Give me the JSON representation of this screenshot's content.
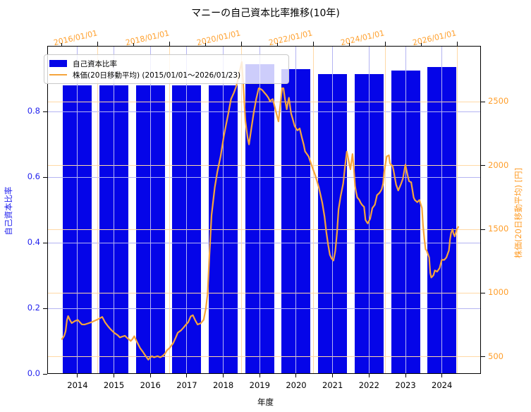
{
  "title": "マニーの自己資本比率推移(10年)",
  "legend": {
    "bar_label": "自己資本比率",
    "line_label": "株価(20日移動平均) (2015/01/01～2026/01/23)"
  },
  "axes": {
    "x_bottom": {
      "label": "年度",
      "ticks": [
        2014,
        2015,
        2016,
        2017,
        2018,
        2019,
        2020,
        2021,
        2022,
        2023,
        2024
      ]
    },
    "x_top": {
      "tick_labels": [
        "2016/01/01",
        "2018/01/01",
        "2020/01/01",
        "2022/01/01",
        "2024/01/01",
        "2026/01/01"
      ],
      "tick_years": [
        2016,
        2018,
        2020,
        2022,
        2024,
        2026
      ],
      "minor_tick_years": [
        2015,
        2017,
        2019,
        2021,
        2023,
        2025
      ]
    },
    "y_left": {
      "label": "自己資本比率",
      "ticks": [
        0.0,
        0.2,
        0.4,
        0.6,
        0.8
      ]
    },
    "y_right": {
      "label": "株価(20日移動平均) [円]",
      "ticks": [
        500,
        1000,
        1500,
        2000,
        2500
      ]
    }
  },
  "colors": {
    "bar": "#0505e8",
    "line": "#f5a53c",
    "left_text": "#2222ee",
    "right_text": "#ff9e2a",
    "grid_blue": "#b4b4f2",
    "grid_orange": "#ffd9a6"
  },
  "chart_data": {
    "type": "bar+line",
    "title": "マニーの自己資本比率推移(10年)",
    "bar": {
      "type": "bar",
      "name": "自己資本比率",
      "categories": [
        2014,
        2015,
        2016,
        2017,
        2018,
        2019,
        2020,
        2021,
        2022,
        2023,
        2024
      ],
      "values": [
        0.88,
        0.88,
        0.88,
        0.88,
        0.88,
        0.945,
        0.93,
        0.915,
        0.915,
        0.925,
        0.935
      ],
      "xlim": [
        2013.17,
        2025.07
      ],
      "ylim": [
        0,
        1.0
      ]
    },
    "line": {
      "type": "line",
      "name": "株価(20日移動平均)",
      "date_range": "2015/01/01～2026/01/23",
      "unit": "円",
      "xlim": [
        2014.59,
        2026.65
      ],
      "ylim": [
        367,
        2937
      ],
      "points": [
        [
          2015.0,
          640
        ],
        [
          2015.06,
          665
        ],
        [
          2015.1,
          700
        ],
        [
          2015.14,
          790
        ],
        [
          2015.17,
          820
        ],
        [
          2015.22,
          790
        ],
        [
          2015.27,
          765
        ],
        [
          2015.35,
          780
        ],
        [
          2015.44,
          790
        ],
        [
          2015.55,
          755
        ],
        [
          2015.63,
          754
        ],
        [
          2015.72,
          762
        ],
        [
          2015.82,
          772
        ],
        [
          2015.9,
          782
        ],
        [
          2016.0,
          795
        ],
        [
          2016.08,
          808
        ],
        [
          2016.12,
          813
        ],
        [
          2016.2,
          770
        ],
        [
          2016.28,
          740
        ],
        [
          2016.35,
          717
        ],
        [
          2016.45,
          690
        ],
        [
          2016.55,
          670
        ],
        [
          2016.61,
          653
        ],
        [
          2016.68,
          660
        ],
        [
          2016.75,
          666
        ],
        [
          2016.83,
          645
        ],
        [
          2016.91,
          625
        ],
        [
          2016.96,
          640
        ],
        [
          2017.01,
          662
        ],
        [
          2017.08,
          620
        ],
        [
          2017.17,
          570
        ],
        [
          2017.25,
          540
        ],
        [
          2017.33,
          506
        ],
        [
          2017.4,
          478
        ],
        [
          2017.45,
          495
        ],
        [
          2017.5,
          506
        ],
        [
          2017.56,
          497
        ],
        [
          2017.61,
          502
        ],
        [
          2017.66,
          506
        ],
        [
          2017.73,
          497
        ],
        [
          2017.79,
          506
        ],
        [
          2017.86,
          524
        ],
        [
          2017.92,
          552
        ],
        [
          2017.99,
          570
        ],
        [
          2018.09,
          607
        ],
        [
          2018.16,
          650
        ],
        [
          2018.22,
          690
        ],
        [
          2018.31,
          708
        ],
        [
          2018.38,
          730
        ],
        [
          2018.45,
          754
        ],
        [
          2018.51,
          772
        ],
        [
          2018.58,
          818
        ],
        [
          2018.64,
          827
        ],
        [
          2018.7,
          790
        ],
        [
          2018.77,
          754
        ],
        [
          2018.86,
          764
        ],
        [
          2018.94,
          791
        ],
        [
          2019.0,
          880
        ],
        [
          2019.05,
          995
        ],
        [
          2019.1,
          1300
        ],
        [
          2019.16,
          1611
        ],
        [
          2019.25,
          1830
        ],
        [
          2019.32,
          1950
        ],
        [
          2019.41,
          2070
        ],
        [
          2019.5,
          2230
        ],
        [
          2019.55,
          2300
        ],
        [
          2019.62,
          2400
        ],
        [
          2019.7,
          2520
        ],
        [
          2019.78,
          2570
        ],
        [
          2019.84,
          2615
        ],
        [
          2019.9,
          2680
        ],
        [
          2019.95,
          2750
        ],
        [
          2020.0,
          2810
        ],
        [
          2020.05,
          2600
        ],
        [
          2020.1,
          2350
        ],
        [
          2020.16,
          2220
        ],
        [
          2020.2,
          2165
        ],
        [
          2020.27,
          2300
        ],
        [
          2020.33,
          2410
        ],
        [
          2020.4,
          2520
        ],
        [
          2020.47,
          2605
        ],
        [
          2020.52,
          2600
        ],
        [
          2020.57,
          2590
        ],
        [
          2020.63,
          2570
        ],
        [
          2020.69,
          2550
        ],
        [
          2020.74,
          2530
        ],
        [
          2020.78,
          2505
        ],
        [
          2020.82,
          2512
        ],
        [
          2020.86,
          2520
        ],
        [
          2020.92,
          2455
        ],
        [
          2020.97,
          2400
        ],
        [
          2021.02,
          2345
        ],
        [
          2021.07,
          2470
        ],
        [
          2021.12,
          2605
        ],
        [
          2021.16,
          2605
        ],
        [
          2021.2,
          2520
        ],
        [
          2021.25,
          2440
        ],
        [
          2021.28,
          2490
        ],
        [
          2021.31,
          2530
        ],
        [
          2021.34,
          2470
        ],
        [
          2021.37,
          2410
        ],
        [
          2021.42,
          2360
        ],
        [
          2021.47,
          2310
        ],
        [
          2021.51,
          2290
        ],
        [
          2021.55,
          2275
        ],
        [
          2021.58,
          2283
        ],
        [
          2021.61,
          2290
        ],
        [
          2021.64,
          2255
        ],
        [
          2021.67,
          2220
        ],
        [
          2021.72,
          2165
        ],
        [
          2021.76,
          2110
        ],
        [
          2021.81,
          2090
        ],
        [
          2021.86,
          2070
        ],
        [
          2021.9,
          2035
        ],
        [
          2021.97,
          1980
        ],
        [
          2022.04,
          1925
        ],
        [
          2022.09,
          1878
        ],
        [
          2022.14,
          1830
        ],
        [
          2022.19,
          1768
        ],
        [
          2022.24,
          1705
        ],
        [
          2022.3,
          1600
        ],
        [
          2022.35,
          1480
        ],
        [
          2022.4,
          1380
        ],
        [
          2022.45,
          1300
        ],
        [
          2022.5,
          1270
        ],
        [
          2022.55,
          1255
        ],
        [
          2022.6,
          1330
        ],
        [
          2022.65,
          1480
        ],
        [
          2022.69,
          1656
        ],
        [
          2022.75,
          1760
        ],
        [
          2022.82,
          1859
        ],
        [
          2022.87,
          1990
        ],
        [
          2022.92,
          2108
        ],
        [
          2022.97,
          2040
        ],
        [
          2023.02,
          1970
        ],
        [
          2023.05,
          2030
        ],
        [
          2023.08,
          2090
        ],
        [
          2023.12,
          1960
        ],
        [
          2023.15,
          1841
        ],
        [
          2023.18,
          1790
        ],
        [
          2023.21,
          1749
        ],
        [
          2023.24,
          1740
        ],
        [
          2023.27,
          1730
        ],
        [
          2023.3,
          1710
        ],
        [
          2023.34,
          1693
        ],
        [
          2023.4,
          1675
        ],
        [
          2023.44,
          1573
        ],
        [
          2023.5,
          1546
        ],
        [
          2023.57,
          1583
        ],
        [
          2023.63,
          1666
        ],
        [
          2023.7,
          1693
        ],
        [
          2023.76,
          1767
        ],
        [
          2023.83,
          1786
        ],
        [
          2023.89,
          1813
        ],
        [
          2023.93,
          1859
        ],
        [
          2023.96,
          1951
        ],
        [
          2024.03,
          2071
        ],
        [
          2024.09,
          2080
        ],
        [
          2024.12,
          2016
        ],
        [
          2024.19,
          1997
        ],
        [
          2024.22,
          1960
        ],
        [
          2024.29,
          1850
        ],
        [
          2024.35,
          1804
        ],
        [
          2024.42,
          1850
        ],
        [
          2024.48,
          1896
        ],
        [
          2024.55,
          2007
        ],
        [
          2024.61,
          1924
        ],
        [
          2024.65,
          1877
        ],
        [
          2024.71,
          1868
        ],
        [
          2024.78,
          1749
        ],
        [
          2024.81,
          1730
        ],
        [
          2024.88,
          1712
        ],
        [
          2024.94,
          1730
        ],
        [
          2024.98,
          1693
        ],
        [
          2025.01,
          1666
        ],
        [
          2025.04,
          1528
        ],
        [
          2025.08,
          1417
        ],
        [
          2025.11,
          1343
        ],
        [
          2025.14,
          1334
        ],
        [
          2025.21,
          1279
        ],
        [
          2025.24,
          1159
        ],
        [
          2025.27,
          1122
        ],
        [
          2025.3,
          1131
        ],
        [
          2025.33,
          1141
        ],
        [
          2025.37,
          1178
        ],
        [
          2025.43,
          1168
        ],
        [
          2025.5,
          1196
        ],
        [
          2025.56,
          1260
        ],
        [
          2025.63,
          1260
        ],
        [
          2025.69,
          1279
        ],
        [
          2025.76,
          1334
        ],
        [
          2025.79,
          1417
        ],
        [
          2025.82,
          1472
        ],
        [
          2025.86,
          1500
        ],
        [
          2025.89,
          1463
        ],
        [
          2025.92,
          1444
        ],
        [
          2025.95,
          1472
        ],
        [
          2025.98,
          1500
        ],
        [
          2026.02,
          1518
        ]
      ]
    }
  }
}
